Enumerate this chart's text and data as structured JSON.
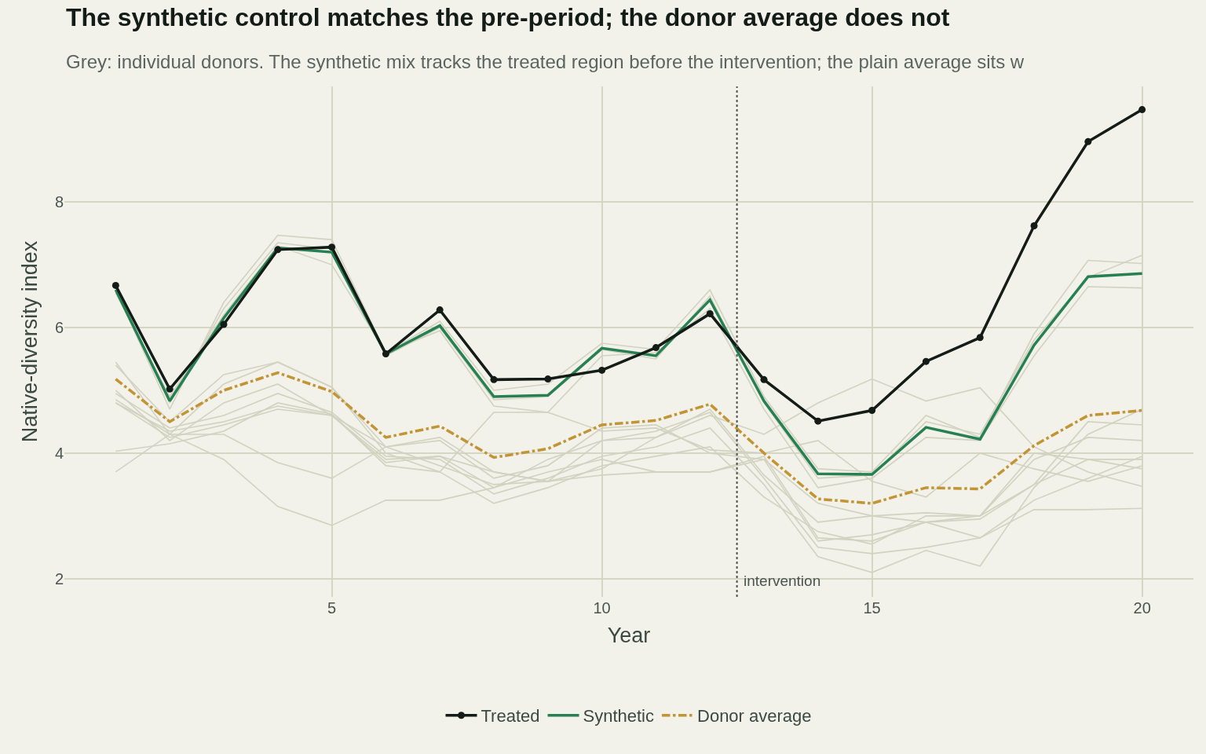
{
  "chart_data": {
    "type": "line",
    "title": "The synthetic control matches the pre-period; the donor average does not",
    "subtitle": "Grey: individual donors. The synthetic mix tracks the treated region before the intervention; the plain average sits w",
    "xlabel": "Year",
    "ylabel": "Native-diversity index",
    "x": [
      1,
      2,
      3,
      4,
      5,
      6,
      7,
      8,
      9,
      10,
      11,
      12,
      13,
      14,
      15,
      16,
      17,
      18,
      19,
      20
    ],
    "xlim": [
      0.05,
      20.95
    ],
    "xticks": [
      5,
      10,
      15,
      20
    ],
    "ylim": [
      1.71,
      9.84
    ],
    "yticks": [
      2,
      4,
      6,
      8
    ],
    "grid": true,
    "legend": "bottom",
    "series": [
      {
        "color": "#d2d2c0",
        "line_style": "solid",
        "values": [
          6.6,
          4.7,
          6.4,
          7.47,
          7.4,
          5.6,
          6.1,
          5.0,
          5.1,
          5.75,
          5.65,
          6.6,
          4.9,
          3.75,
          3.7,
          4.6,
          4.25,
          5.9,
          7.07,
          7.02
        ]
      },
      {
        "color": "#d2d2c0",
        "line_style": "solid",
        "values": [
          6.55,
          4.9,
          6.2,
          7.3,
          7.0,
          5.6,
          5.95,
          4.75,
          4.65,
          5.55,
          5.6,
          6.3,
          4.7,
          3.45,
          3.6,
          4.25,
          4.2,
          5.55,
          6.65,
          6.63
        ]
      },
      {
        "color": "#d2d2c0",
        "line_style": "solid",
        "values": [
          6.62,
          4.8,
          6.3,
          7.35,
          7.25,
          5.55,
          6.0,
          4.85,
          4.9,
          5.65,
          5.5,
          6.5,
          4.8,
          3.6,
          3.65,
          4.5,
          4.3,
          5.8,
          6.8,
          7.15
        ]
      },
      {
        "color": "#d2d2c0",
        "line_style": "solid",
        "values": [
          5.45,
          4.3,
          3.9,
          3.15,
          2.85,
          3.25,
          3.25,
          3.45,
          3.9,
          4.2,
          4.25,
          4.6,
          4.3,
          4.8,
          5.18,
          4.83,
          5.04,
          4.1,
          3.7,
          3.47
        ]
      },
      {
        "color": "#d2d2c0",
        "line_style": "solid",
        "values": [
          4.03,
          4.15,
          4.35,
          4.8,
          4.62,
          3.8,
          3.7,
          4.65,
          4.65,
          4.35,
          4.4,
          4.05,
          4.0,
          4.2,
          3.55,
          3.3,
          4.0,
          3.75,
          3.55,
          3.8
        ]
      },
      {
        "color": "#d2d2c0",
        "line_style": "solid",
        "values": [
          4.85,
          4.3,
          4.3,
          3.85,
          3.6,
          4.1,
          4.2,
          3.6,
          3.8,
          4.4,
          4.45,
          4.0,
          3.9,
          2.6,
          2.7,
          2.9,
          2.65,
          3.1,
          3.1,
          3.12
        ]
      },
      {
        "color": "#d2d2c0",
        "line_style": "solid",
        "values": [
          4.8,
          4.35,
          4.5,
          4.75,
          4.6,
          3.85,
          3.95,
          3.7,
          3.55,
          3.75,
          4.25,
          4.7,
          3.65,
          2.9,
          3.0,
          3.05,
          3.0,
          3.5,
          3.9,
          3.9
        ]
      },
      {
        "color": "#d2d2c0",
        "line_style": "solid",
        "values": [
          5.0,
          4.2,
          4.8,
          5.1,
          4.6,
          4.1,
          4.25,
          3.7,
          3.55,
          4.2,
          4.35,
          4.65,
          3.6,
          2.5,
          2.4,
          2.5,
          2.65,
          3.25,
          3.6,
          3.95
        ]
      },
      {
        "color": "#d2d2c0",
        "line_style": "solid",
        "values": [
          4.95,
          4.4,
          4.6,
          4.95,
          4.65,
          3.95,
          3.9,
          3.35,
          3.6,
          3.95,
          4.1,
          4.4,
          3.5,
          2.35,
          2.1,
          2.45,
          2.2,
          3.45,
          4.3,
          4.7
        ]
      },
      {
        "color": "#d2d2c0",
        "line_style": "solid",
        "values": [
          3.7,
          4.3,
          5.1,
          5.45,
          5.05,
          4.1,
          3.8,
          3.5,
          3.55,
          3.65,
          3.7,
          3.7,
          3.9,
          3.2,
          3.0,
          2.9,
          2.95,
          3.5,
          4.5,
          4.45
        ]
      },
      {
        "color": "#d2d2c0",
        "line_style": "solid",
        "values": [
          5.4,
          4.5,
          5.25,
          5.45,
          5.05,
          4.0,
          3.7,
          3.2,
          3.45,
          3.8,
          3.95,
          4.1,
          3.3,
          2.75,
          2.55,
          3.0,
          3.0,
          3.9,
          4.25,
          4.2
        ]
      },
      {
        "color": "#d2d2c0",
        "line_style": "solid",
        "values": [
          4.8,
          4.25,
          4.45,
          4.7,
          4.6,
          3.9,
          3.95,
          3.45,
          3.7,
          3.9,
          3.7,
          3.7,
          3.95,
          2.65,
          2.6,
          2.9,
          3.0,
          4.0,
          3.9,
          3.75
        ]
      },
      {
        "name": "Treated",
        "color": "#141c17",
        "line_style": "solid",
        "marker": "circle",
        "values": [
          6.67,
          5.02,
          6.05,
          7.24,
          7.28,
          5.58,
          6.28,
          5.17,
          5.18,
          5.32,
          5.68,
          6.22,
          5.17,
          4.51,
          4.68,
          5.46,
          5.84,
          7.62,
          8.96,
          9.47
        ]
      },
      {
        "name": "Synthetic",
        "color": "#268052",
        "line_style": "solid",
        "values": [
          6.6,
          4.83,
          6.15,
          7.27,
          7.2,
          5.58,
          6.03,
          4.9,
          4.92,
          5.67,
          5.55,
          6.44,
          4.83,
          3.67,
          3.66,
          4.41,
          4.22,
          5.72,
          6.81,
          6.86
        ]
      },
      {
        "name": "Donor average",
        "color": "#c29433",
        "line_style": "dashdot",
        "values": [
          5.18,
          4.5,
          5.0,
          5.28,
          4.98,
          4.25,
          4.43,
          3.93,
          4.07,
          4.45,
          4.52,
          4.78,
          4.0,
          3.27,
          3.2,
          3.45,
          3.43,
          4.12,
          4.6,
          4.68
        ]
      }
    ],
    "ref_lines": [
      {
        "axis": "x",
        "value": 12.5,
        "label": "intervention",
        "color": "#4a5550",
        "line_style": "dotted"
      }
    ]
  }
}
